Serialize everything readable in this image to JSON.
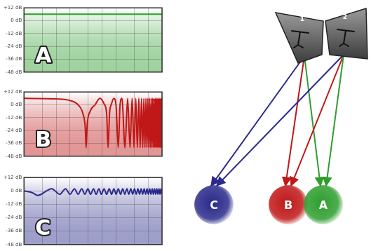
{
  "chart_data": [
    {
      "type": "line",
      "annotation": "A",
      "color": "#2e9e2e",
      "log": "x",
      "grid": true,
      "tick_labels": "y",
      "xlim": [
        20,
        20000
      ],
      "xticks": [
        20,
        50,
        100,
        200,
        500,
        1000,
        2000,
        5000,
        10000,
        20000
      ],
      "ylim": [
        -48,
        12
      ],
      "yticks": [
        {
          "value": 12,
          "label": "+12 dB"
        },
        {
          "value": 0,
          "label": "0 dB"
        },
        {
          "value": -12,
          "label": "-12 dB"
        },
        {
          "value": -24,
          "label": "-24 dB"
        },
        {
          "value": -36,
          "label": "-36 dB"
        },
        {
          "value": -48,
          "label": "-48 dB"
        }
      ],
      "x": [
        20,
        20000
      ],
      "values": [
        6,
        6
      ]
    },
    {
      "type": "line",
      "annotation": "B",
      "color": "#c01818",
      "log": "x",
      "grid": true,
      "tick_labels": "y",
      "xlim": [
        20,
        20000
      ],
      "xticks": [
        20,
        50,
        100,
        200,
        500,
        1000,
        2000,
        5000,
        10000,
        20000
      ],
      "ylim": [
        -48,
        12
      ],
      "yticks": [
        {
          "value": 12,
          "label": "+12 dB"
        },
        {
          "value": 0,
          "label": "0 dB"
        },
        {
          "value": -12,
          "label": "-12 dB"
        },
        {
          "value": -24,
          "label": "-24 dB"
        },
        {
          "value": -36,
          "label": "-36 dB"
        },
        {
          "value": -48,
          "label": "-48 dB"
        }
      ],
      "x": [
        20,
        100,
        200,
        300,
        380,
        430,
        448,
        470,
        550,
        700,
        896,
        1100,
        1250,
        1344,
        1450,
        1600,
        1792,
        2000,
        2240,
        2450,
        2688,
        3136,
        3584,
        4032,
        4480,
        4928,
        5376,
        5824,
        6272,
        6720,
        7168,
        7616,
        8064,
        8512,
        8960,
        9408,
        9856,
        10304,
        10752,
        11200,
        11648,
        12096,
        12544,
        12992,
        13440,
        13888,
        14336,
        14784,
        15232,
        15680,
        16128,
        16576,
        17024,
        17472,
        17920,
        18368,
        18816,
        19264,
        19712,
        20000
      ],
      "values": [
        6,
        5.5,
        4,
        0,
        -8,
        -22,
        -40,
        -20,
        -6,
        0,
        6,
        1,
        -8,
        -40,
        -8,
        1,
        6,
        0,
        -40,
        0,
        6,
        -40,
        6,
        -40,
        6,
        -40,
        6,
        -40,
        6,
        -40,
        6,
        -40,
        6,
        -40,
        6,
        -40,
        6,
        -40,
        6,
        -40,
        6,
        -40,
        6,
        -40,
        6,
        -40,
        6,
        -40,
        6,
        -40,
        6,
        -40,
        6,
        -40,
        6,
        -40,
        6,
        -40,
        6,
        5
      ]
    },
    {
      "type": "line",
      "annotation": "C",
      "color": "#2a2a8c",
      "log": "x",
      "grid": true,
      "tick_labels": "y",
      "xlim": [
        20,
        20000
      ],
      "xticks": [
        20,
        50,
        100,
        200,
        500,
        1000,
        2000,
        5000,
        10000,
        20000
      ],
      "ylim": [
        -48,
        12
      ],
      "yticks": [
        {
          "value": 12,
          "label": "+12 dB"
        },
        {
          "value": 0,
          "label": "0 dB"
        },
        {
          "value": -12,
          "label": "-12 dB"
        },
        {
          "value": -24,
          "label": "-24 dB"
        },
        {
          "value": -36,
          "label": "-36 dB"
        },
        {
          "value": -48,
          "label": "-48 dB"
        }
      ],
      "x": [
        20,
        30,
        40,
        80,
        120,
        160,
        200,
        250,
        300,
        360,
        420,
        490,
        560,
        650,
        740,
        850,
        960,
        1100,
        1250,
        1420,
        1600,
        1800,
        2000,
        2250,
        2500,
        2800,
        3100,
        3450,
        3800,
        4200,
        4600,
        5050,
        5500,
        6000,
        6500,
        7050,
        7600,
        8200,
        8800,
        9450,
        10100,
        10800,
        11500,
        12250,
        13000,
        13800,
        14600,
        15450,
        16300,
        17200,
        18100,
        19000,
        20000
      ],
      "values": [
        0,
        -1.5,
        -4,
        2,
        -3,
        2,
        -3,
        2,
        -3,
        2,
        -3,
        2,
        -3,
        2,
        -3,
        2,
        -3,
        2,
        -3,
        2,
        -3,
        2,
        -3,
        2,
        -3,
        2,
        -3,
        2,
        -3,
        2,
        -3,
        2,
        -3,
        2,
        -3,
        2,
        -3,
        2,
        -3,
        2,
        -3,
        2,
        -3,
        2,
        -3,
        2,
        -3,
        2,
        -3,
        2,
        -3,
        2,
        -3
      ]
    }
  ],
  "diagram": {
    "speakers": [
      "1",
      "2"
    ],
    "listeners": [
      "C",
      "B",
      "A"
    ]
  }
}
